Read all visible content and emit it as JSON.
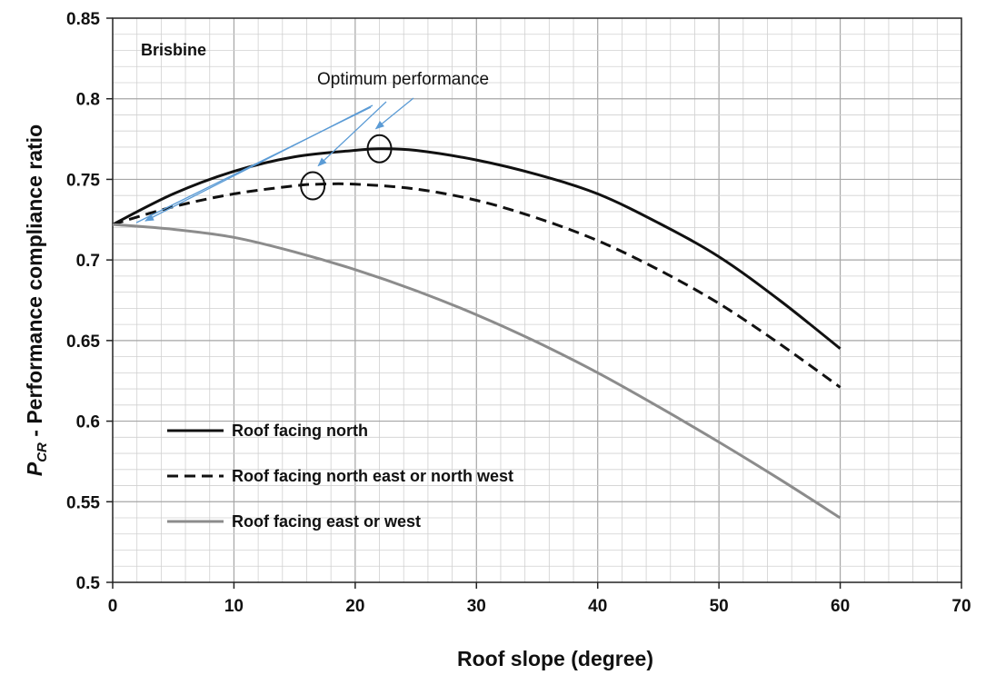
{
  "chart_data": {
    "type": "line",
    "title": "",
    "xlabel": "Roof slope  (degree)",
    "ylabel": {
      "symbol": "P",
      "subscript": "CR",
      "text": " -  Performance compliance ratio"
    },
    "xlim": [
      0,
      70
    ],
    "ylim": [
      0.5,
      0.85
    ],
    "x_ticks": [
      0,
      10,
      20,
      30,
      40,
      50,
      60,
      70
    ],
    "y_ticks": [
      0.5,
      0.55,
      0.6,
      0.65,
      0.7,
      0.75,
      0.8,
      0.85
    ],
    "x_tick_labels": [
      "0",
      "10",
      "20",
      "30",
      "40",
      "50",
      "60",
      "70"
    ],
    "y_tick_labels": [
      "0.5",
      "0.55",
      "0.6",
      "0.65",
      "0.7",
      "0.75",
      "0.8",
      "0.85"
    ],
    "grid": true,
    "minor_grid_x_step": 2,
    "minor_grid_y_step": 0.01,
    "series": [
      {
        "name": "Roof facing north",
        "style": "solid",
        "color": "#111111",
        "x": [
          0,
          5,
          10,
          15,
          20,
          22,
          25,
          30,
          35,
          40,
          45,
          50,
          55,
          60
        ],
        "y": [
          0.722,
          0.741,
          0.755,
          0.764,
          0.768,
          0.769,
          0.768,
          0.762,
          0.753,
          0.741,
          0.723,
          0.702,
          0.675,
          0.645
        ]
      },
      {
        "name": "Roof facing north east or north west",
        "style": "dashed",
        "color": "#111111",
        "x": [
          0,
          5,
          10,
          15,
          17,
          20,
          25,
          30,
          35,
          40,
          45,
          50,
          55,
          60
        ],
        "y": [
          0.722,
          0.733,
          0.741,
          0.746,
          0.747,
          0.747,
          0.744,
          0.737,
          0.726,
          0.712,
          0.694,
          0.673,
          0.648,
          0.621
        ]
      },
      {
        "name": "Roof facing east or west",
        "style": "solid",
        "color": "#8c8c8c",
        "x": [
          0,
          5,
          10,
          15,
          20,
          25,
          30,
          35,
          40,
          45,
          50,
          55,
          60
        ],
        "y": [
          0.722,
          0.719,
          0.714,
          0.705,
          0.694,
          0.681,
          0.666,
          0.649,
          0.63,
          0.609,
          0.587,
          0.564,
          0.54
        ]
      }
    ],
    "annotations": {
      "location_label": "Brisbine",
      "optimum_label": "Optimum performance",
      "optimum_points": [
        {
          "series": 0,
          "x": 22,
          "y": 0.769
        },
        {
          "series": 1,
          "x": 16.5,
          "y": 0.746
        },
        {
          "series": 2,
          "x": 0,
          "y": 0.722
        }
      ],
      "arrow_color": "#5b9bd5"
    },
    "legend_placement": "lower-left"
  }
}
